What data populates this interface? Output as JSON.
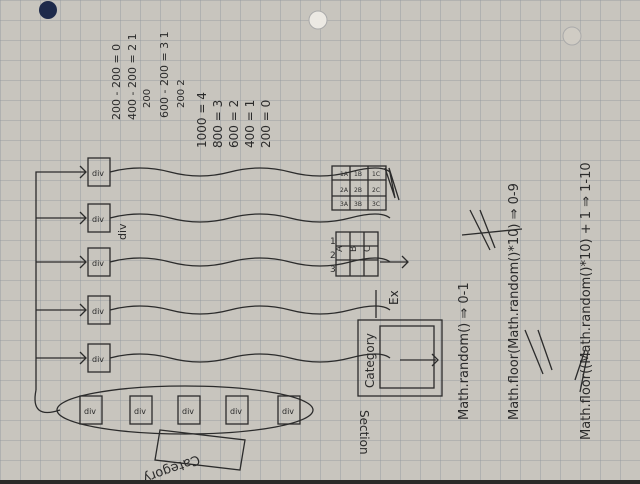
{
  "photo": {
    "paper_color": "#d9d6cf",
    "grid_color": "#9aa0a8",
    "ink_color": "#2b2b2b"
  },
  "diagram": {
    "div_label": "div",
    "category_label": "Category",
    "section_label": "Section",
    "grid_headers": [
      "A",
      "B",
      "C"
    ],
    "grid_rows": [
      "1",
      "2",
      "3"
    ],
    "ex_label": "Ex",
    "table_cells": [
      [
        "1A",
        "1B",
        "1C"
      ],
      [
        "2A",
        "2B",
        "2C"
      ],
      [
        "3A",
        "3B",
        "3C"
      ]
    ]
  },
  "notes": {
    "calc_lines": [
      "200 - 200 = 0",
      "400 - 200 = 2  1",
      "200",
      "600 - 200 = 3  1",
      "200  2"
    ],
    "value_list": [
      "1000 = 4",
      "800 = 3",
      "600 = 2",
      "400 = 1",
      "200 = 0"
    ],
    "math_lines": [
      "Math.random() ⇒ 0-1",
      "Math.floor(Math.random()*10) ⇒ 0-9",
      "Math.floor((Math.random()*10) + 1 ⇒ 1-10"
    ]
  }
}
